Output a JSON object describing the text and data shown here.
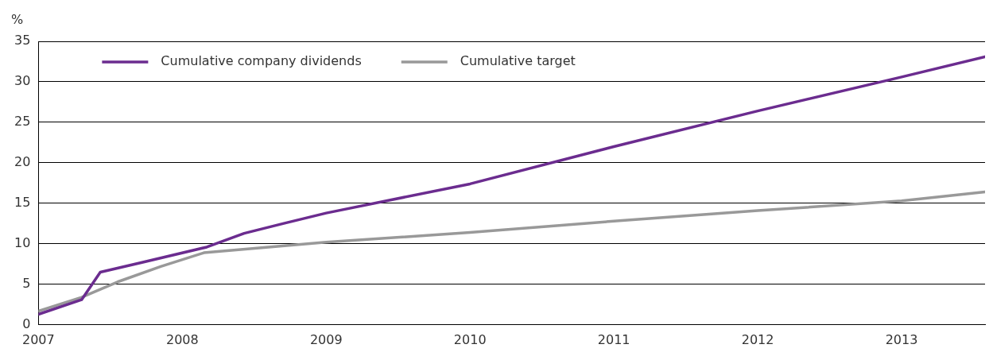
{
  "chart_data": {
    "type": "line",
    "ylabel": "%",
    "xlim": [
      2007,
      2013.58
    ],
    "xticks": [
      2007,
      2008,
      2009,
      2010,
      2011,
      2012,
      2013
    ],
    "ylim": [
      0,
      35
    ],
    "yticks": [
      0,
      5,
      10,
      15,
      20,
      25,
      30,
      35
    ],
    "grid": "y",
    "legend": "top left",
    "marker": "none",
    "line_style": "solid",
    "series": [
      {
        "name": "Cumulative company dividends",
        "color": "#6b2c8f",
        "x": [
          2007,
          2007.3,
          2007.43,
          2007.72,
          2008.17,
          2008.43,
          2008.7,
          2009,
          2010,
          2011,
          2012,
          2013,
          2013.58
        ],
        "values": [
          1.3,
          3.1,
          6.5,
          7.7,
          9.6,
          11.3,
          12.5,
          13.8,
          17.4,
          22.0,
          26.4,
          30.6,
          33.1
        ]
      },
      {
        "name": "Cumulative target",
        "color": "#999999",
        "x": [
          2007,
          2007.3,
          2007.55,
          2007.85,
          2008.15,
          2009,
          2010,
          2011,
          2012,
          2013,
          2013.58
        ],
        "values": [
          1.7,
          3.4,
          5.3,
          7.2,
          8.9,
          10.2,
          11.4,
          12.8,
          14.1,
          15.3,
          16.4
        ]
      }
    ]
  }
}
